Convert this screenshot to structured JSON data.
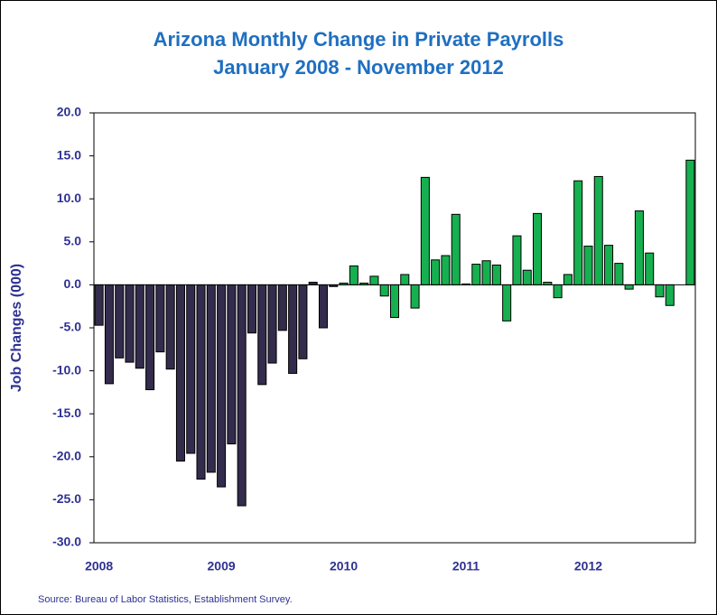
{
  "chart_data": {
    "type": "bar",
    "title": "Arizona Monthly Change in Private Payrolls",
    "subtitle": "January 2008 - November 2012",
    "y_label": "Job Changes (000)",
    "source": "Source: Bureau of Labor Statistics, Establishment Survey.",
    "categories": [
      "2008",
      null,
      null,
      null,
      null,
      null,
      null,
      null,
      null,
      null,
      null,
      null,
      "2009",
      null,
      null,
      null,
      null,
      null,
      null,
      null,
      null,
      null,
      null,
      null,
      "2010",
      null,
      null,
      null,
      null,
      null,
      null,
      null,
      null,
      null,
      null,
      null,
      "2011",
      null,
      null,
      null,
      null,
      null,
      null,
      null,
      null,
      null,
      null,
      null,
      "2012",
      null,
      null,
      null,
      null,
      null,
      null,
      null,
      null,
      null,
      null
    ],
    "values": [
      -4.7,
      -11.5,
      -8.5,
      -9.0,
      -9.7,
      -12.2,
      -7.8,
      -9.8,
      -20.5,
      -19.6,
      -22.6,
      -21.8,
      -23.5,
      -18.5,
      -25.7,
      -5.6,
      -11.6,
      -9.1,
      -5.3,
      -10.3,
      -8.6,
      0.3,
      -5.0,
      -0.2,
      0.2,
      2.2,
      0.2,
      1.0,
      -1.3,
      -3.8,
      1.2,
      -2.7,
      12.5,
      2.9,
      3.4,
      8.2,
      0.1,
      2.4,
      2.8,
      2.3,
      -4.2,
      5.7,
      1.7,
      8.3,
      0.3,
      -1.5,
      1.2,
      12.1,
      4.5,
      12.6,
      4.6,
      2.5,
      -0.5,
      8.6,
      3.7,
      -1.4,
      -2.4,
      0.0,
      14.5
    ],
    "colors": [
      "#342c4c",
      "#342c4c",
      "#342c4c",
      "#342c4c",
      "#342c4c",
      "#342c4c",
      "#342c4c",
      "#342c4c",
      "#342c4c",
      "#342c4c",
      "#342c4c",
      "#342c4c",
      "#342c4c",
      "#342c4c",
      "#342c4c",
      "#342c4c",
      "#342c4c",
      "#342c4c",
      "#342c4c",
      "#342c4c",
      "#342c4c",
      "#342c4c",
      "#342c4c",
      "#342c4c",
      "#17b050",
      "#17b050",
      "#17b050",
      "#17b050",
      "#17b050",
      "#17b050",
      "#17b050",
      "#17b050",
      "#17b050",
      "#17b050",
      "#17b050",
      "#17b050",
      "#17b050",
      "#17b050",
      "#17b050",
      "#17b050",
      "#17b050",
      "#17b050",
      "#17b050",
      "#17b050",
      "#17b050",
      "#17b050",
      "#17b050",
      "#17b050",
      "#17b050",
      "#17b050",
      "#17b050",
      "#17b050",
      "#17b050",
      "#17b050",
      "#17b050",
      "#17b050",
      "#17b050",
      "#17b050",
      "#17b050"
    ],
    "ylim": [
      -30,
      20
    ],
    "yticks": [
      {
        "value": -30,
        "label": "-30.0"
      },
      {
        "value": -25,
        "label": "-25.0"
      },
      {
        "value": -20,
        "label": "-20.0"
      },
      {
        "value": -15,
        "label": "-15.0"
      },
      {
        "value": -10,
        "label": "-10.0"
      },
      {
        "value": -5,
        "label": "-5.0"
      },
      {
        "value": 0,
        "label": "0.0"
      },
      {
        "value": 5,
        "label": "5.0"
      },
      {
        "value": 10,
        "label": "10.0"
      },
      {
        "value": 15,
        "label": "15.0"
      },
      {
        "value": 20,
        "label": "20.0"
      }
    ],
    "grid": false
  }
}
